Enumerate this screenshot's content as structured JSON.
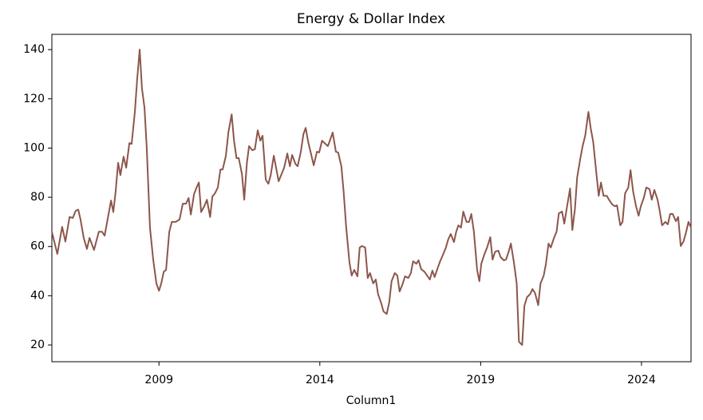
{
  "chart_data": {
    "type": "line",
    "title": "Energy & Dollar Index",
    "x_label": "Column1",
    "color": "#8c564b",
    "x": [
      2005.67,
      2005.79,
      2005.84,
      2005.99,
      2006.09,
      2006.22,
      2006.32,
      2006.41,
      2006.49,
      2006.56,
      2006.66,
      2006.76,
      2006.84,
      2006.98,
      2007.13,
      2007.23,
      2007.31,
      2007.51,
      2007.58,
      2007.65,
      2007.73,
      2007.8,
      2007.9,
      2007.98,
      2008.08,
      2008.15,
      2008.25,
      2008.32,
      2008.4,
      2008.47,
      2008.55,
      2008.62,
      2008.72,
      2008.82,
      2008.92,
      2009.0,
      2009.07,
      2009.15,
      2009.22,
      2009.32,
      2009.4,
      2009.52,
      2009.64,
      2009.74,
      2009.84,
      2009.92,
      2009.99,
      2010.09,
      2010.17,
      2010.24,
      2010.31,
      2010.41,
      2010.49,
      2010.59,
      2010.66,
      2010.74,
      2010.83,
      2010.91,
      2010.98,
      2011.08,
      2011.16,
      2011.26,
      2011.33,
      2011.41,
      2011.48,
      2011.58,
      2011.65,
      2011.73,
      2011.8,
      2011.9,
      2011.98,
      2012.07,
      2012.15,
      2012.22,
      2012.32,
      2012.4,
      2012.47,
      2012.57,
      2012.72,
      2012.89,
      2012.99,
      2013.07,
      2013.14,
      2013.24,
      2013.31,
      2013.41,
      2013.49,
      2013.56,
      2013.64,
      2013.74,
      2013.81,
      2013.91,
      2013.98,
      2014.07,
      2014.15,
      2014.25,
      2014.32,
      2014.4,
      2014.5,
      2014.57,
      2014.67,
      2014.74,
      2014.82,
      2014.92,
      2014.99,
      2015.07,
      2015.17,
      2015.24,
      2015.31,
      2015.41,
      2015.49,
      2015.56,
      2015.66,
      2015.74,
      2015.81,
      2015.91,
      2015.98,
      2016.08,
      2016.16,
      2016.23,
      2016.33,
      2016.41,
      2016.48,
      2016.58,
      2016.65,
      2016.75,
      2016.83,
      2016.9,
      2017.0,
      2017.07,
      2017.15,
      2017.25,
      2017.32,
      2017.42,
      2017.5,
      2017.57,
      2017.67,
      2017.74,
      2017.84,
      2017.92,
      2017.99,
      2018.07,
      2018.17,
      2018.24,
      2018.31,
      2018.39,
      2018.46,
      2018.56,
      2018.64,
      2018.71,
      2018.79,
      2018.89,
      2018.96,
      2019.02,
      2019.12,
      2019.2,
      2019.3,
      2019.37,
      2019.45,
      2019.55,
      2019.62,
      2019.72,
      2019.79,
      2019.87,
      2019.94,
      2020.04,
      2020.12,
      2020.19,
      2020.29,
      2020.36,
      2020.44,
      2020.54,
      2020.61,
      2020.69,
      2020.79,
      2020.86,
      2020.96,
      2021.03,
      2021.11,
      2021.18,
      2021.28,
      2021.36,
      2021.43,
      2021.53,
      2021.6,
      2021.68,
      2021.78,
      2021.85,
      2021.93,
      2022.0,
      2022.1,
      2022.17,
      2022.25,
      2022.35,
      2022.42,
      2022.5,
      2022.6,
      2022.67,
      2022.74,
      2022.82,
      2022.92,
      2022.99,
      2023.09,
      2023.17,
      2023.24,
      2023.34,
      2023.41,
      2023.49,
      2023.59,
      2023.66,
      2023.74,
      2023.83,
      2023.91,
      2023.98,
      2024.07,
      2024.15,
      2024.25,
      2024.32,
      2024.4,
      2024.5,
      2024.57,
      2024.64,
      2024.74,
      2024.82,
      2024.89,
      2024.97,
      2025.07,
      2025.14,
      2025.22,
      2025.31,
      2025.39,
      2025.46,
      2025.54
    ],
    "values": [
      66,
      59.6,
      57,
      68,
      62,
      72,
      71.6,
      74.5,
      75,
      71,
      63.5,
      59,
      63.5,
      58.6,
      66,
      66,
      64.4,
      78.7,
      74,
      82,
      94,
      89,
      96.5,
      92,
      102,
      101.7,
      114.7,
      127.7,
      140,
      124.4,
      116.3,
      100,
      67.7,
      54.7,
      45,
      42,
      45,
      49.8,
      50.5,
      66,
      70,
      70,
      71,
      77.4,
      77.4,
      79.7,
      73,
      81.3,
      84,
      86,
      74,
      76.4,
      79,
      72,
      80.3,
      81.6,
      84,
      91.3,
      91.3,
      96.9,
      106.6,
      113.7,
      103.3,
      95.9,
      95.9,
      89.4,
      79,
      93.6,
      100.8,
      99.1,
      99.5,
      107.2,
      103,
      105,
      87.1,
      85.5,
      88.8,
      96.9,
      86.5,
      92,
      97.8,
      92.6,
      97.2,
      93.6,
      92.6,
      98.5,
      105.6,
      108.2,
      102.4,
      96.9,
      93,
      98.5,
      98.2,
      103,
      102,
      100.8,
      103.3,
      106.3,
      98.5,
      98.2,
      92.6,
      82.3,
      67.7,
      53.7,
      48.2,
      50.5,
      47.9,
      59.6,
      60.2,
      59.6,
      47.2,
      49.2,
      45,
      46.6,
      40.7,
      36.9,
      33.6,
      32.6,
      37.5,
      45.9,
      49.2,
      48.2,
      41.7,
      45,
      47.9,
      47.2,
      49.2,
      54,
      53,
      54.4,
      50.8,
      49.8,
      48.5,
      46.6,
      50.2,
      47.6,
      51.5,
      54,
      57,
      59.6,
      62.8,
      65.1,
      61.8,
      66,
      68.6,
      67.7,
      74.2,
      70,
      70,
      73.2,
      66,
      50.5,
      45.9,
      53,
      57,
      59.6,
      63.8,
      54.7,
      57.9,
      58.3,
      55.7,
      54.4,
      54.7,
      57.9,
      61.2,
      53,
      45,
      21.3,
      20,
      35.9,
      39.4,
      40.7,
      42.7,
      41.1,
      36.2,
      45,
      48.2,
      53,
      61.2,
      59.6,
      63.5,
      66,
      73.5,
      74.2,
      69.3,
      75.8,
      83.6,
      66.7,
      75.1,
      88.1,
      95.9,
      100.8,
      105,
      114.7,
      108.2,
      102.4,
      89.4,
      80.6,
      86,
      80.6,
      80.6,
      79,
      77.1,
      76.4,
      76.7,
      68.6,
      70,
      81.6,
      84,
      91,
      82.3,
      76.4,
      72.5,
      76.4,
      79.7,
      84,
      83.3,
      79,
      83,
      79,
      74.2,
      68.6,
      70,
      69,
      73.2,
      73.2,
      70.3,
      72,
      60.2,
      62.2,
      66,
      70,
      67.7
    ],
    "xlim": [
      2005.67,
      2025.54
    ],
    "xticks": [
      2009,
      2014,
      2019,
      2024
    ],
    "ylim": [
      13.2,
      146.2
    ],
    "yticks": [
      20,
      40,
      60,
      80,
      100,
      120,
      140
    ]
  }
}
